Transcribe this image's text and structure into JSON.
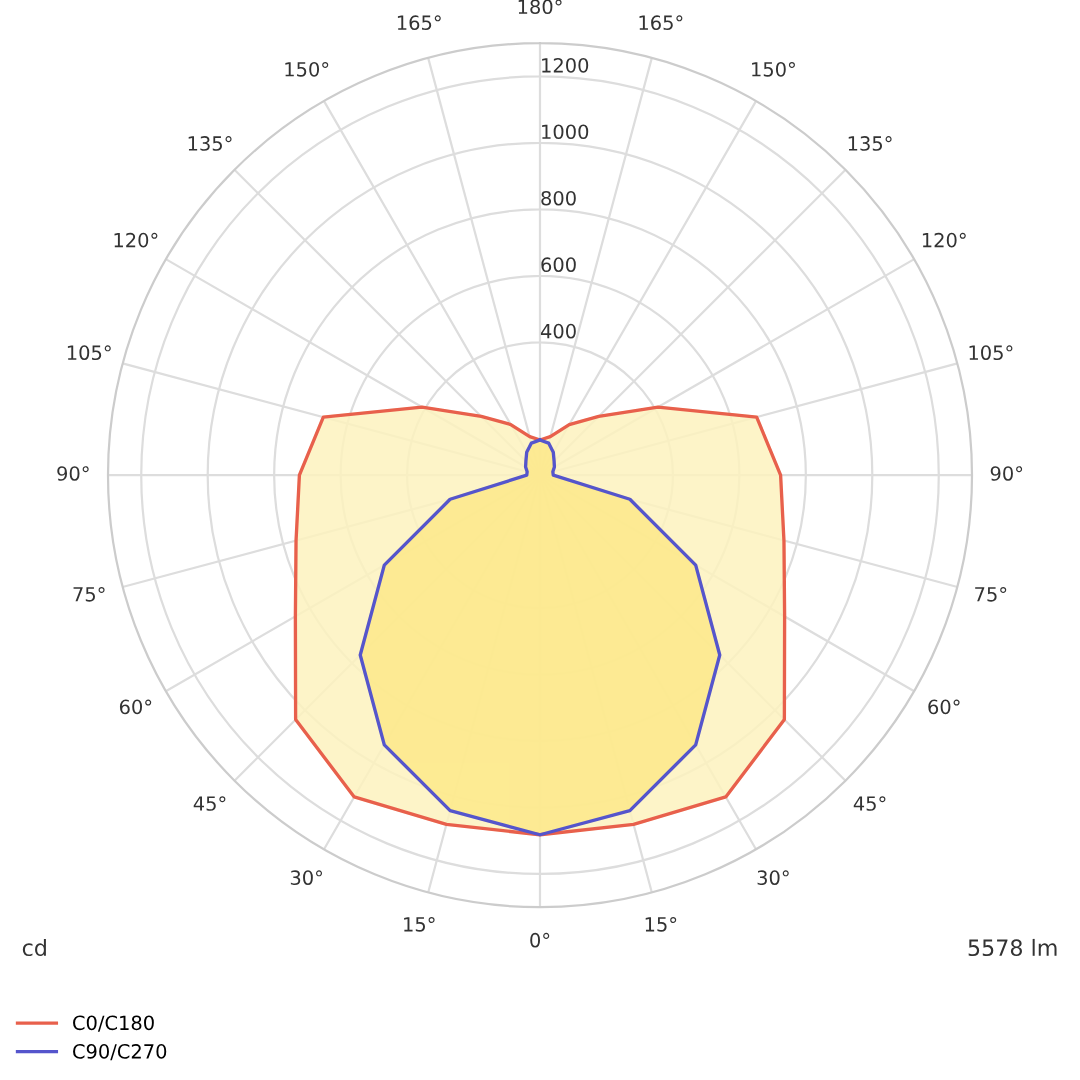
{
  "chart_data": {
    "type": "radar",
    "categories": [
      "180°",
      "165°",
      "150°",
      "135°",
      "120°",
      "105°",
      "90°",
      "75°",
      "60°",
      "45°",
      "30°",
      "15°",
      "0°",
      "15°",
      "30°",
      "45°",
      "60°",
      "75°",
      "90°",
      "105°",
      "120°",
      "135°",
      "150°",
      "165°"
    ],
    "series": [
      {
        "name": "C0/C180",
        "color": "#e8604c",
        "values": [
          106,
          120,
          176,
          250,
          410,
          675,
          724,
          760,
          850,
          1040,
          1118,
          1088,
          1082,
          1088,
          1118,
          1040,
          850,
          760,
          724,
          675,
          410,
          250,
          176,
          120
        ]
      },
      {
        "name": "C90/C270",
        "color": "#5555cc",
        "values": [
          106,
          100,
          80,
          60,
          50,
          40,
          40,
          280,
          541,
          765,
          937,
          1045,
          1082,
          1045,
          937,
          765,
          541,
          280,
          40,
          40,
          50,
          60,
          80,
          100
        ]
      }
    ],
    "ylim": [
      0,
      1300
    ],
    "yticks": [
      400,
      600,
      800,
      1000,
      1200
    ],
    "grid": true,
    "legend": "bottom left",
    "annotations": [
      "cd",
      "5578 lm"
    ]
  }
}
